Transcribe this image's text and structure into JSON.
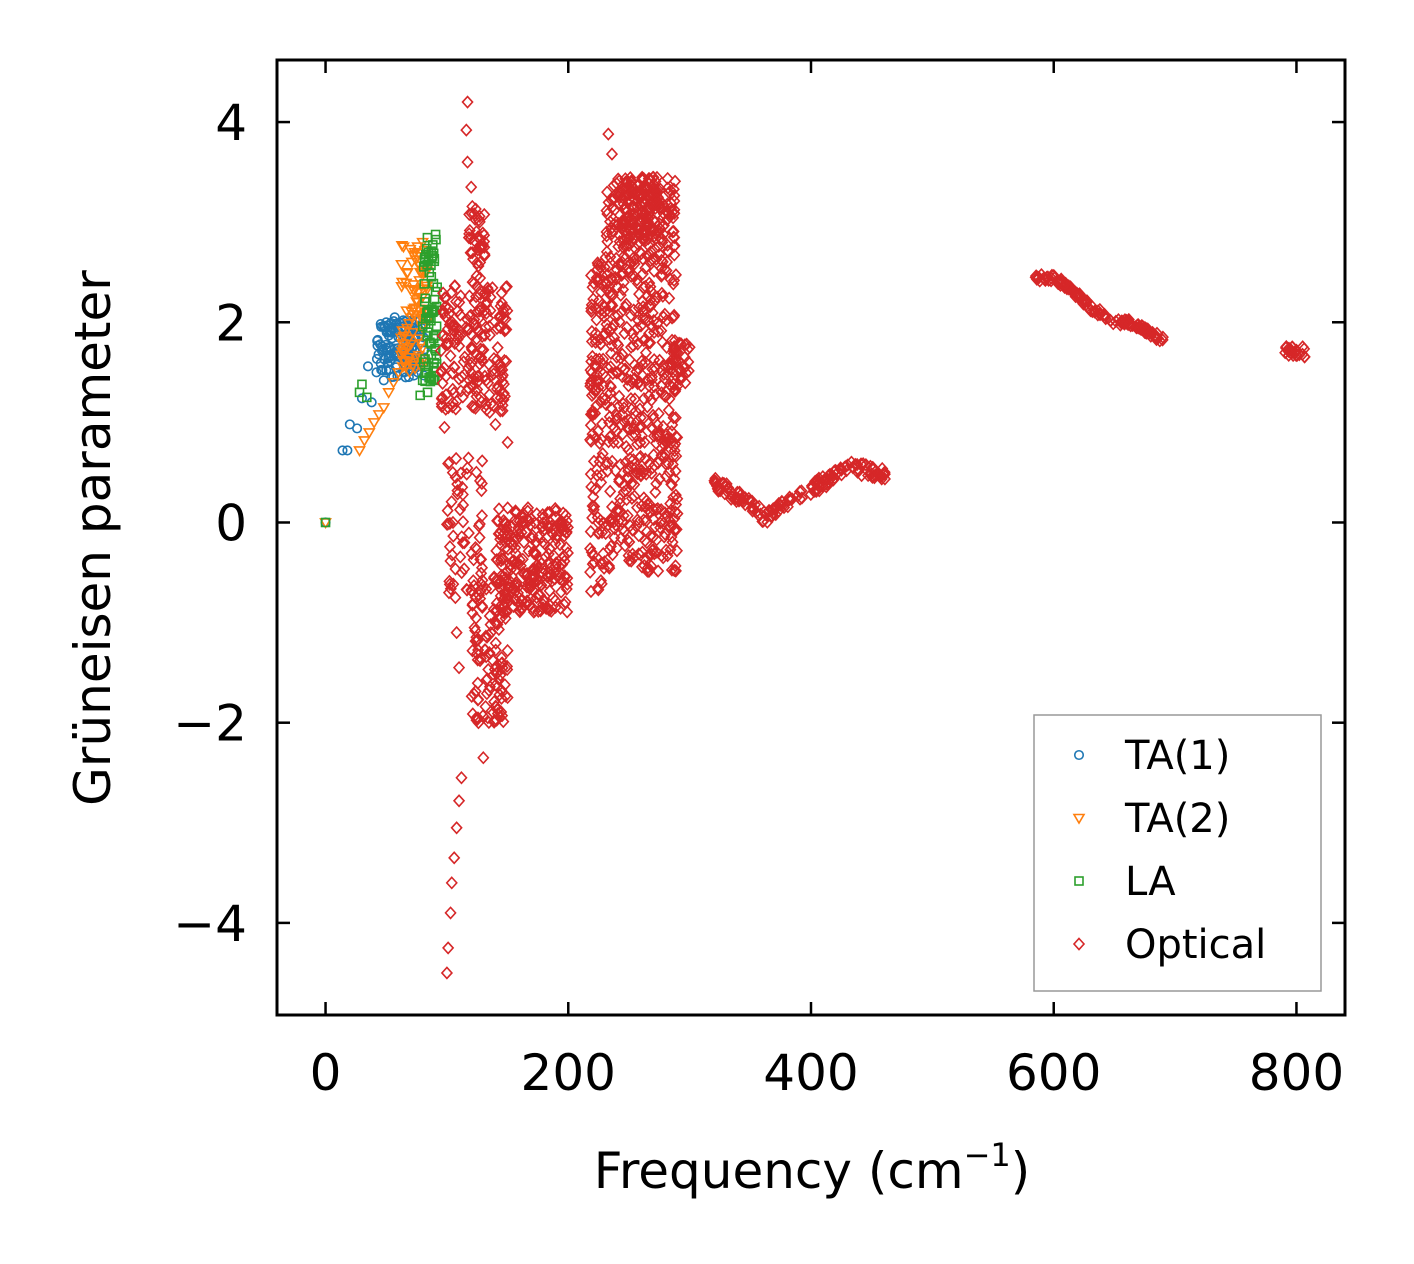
{
  "chart_data": {
    "type": "scatter",
    "title": "",
    "xlabel": "Frequency (cm",
    "xlabel_sup": "−1",
    "xlabel_close": ")",
    "ylabel": "Grüneisen parameter",
    "xlim": [
      -40,
      840
    ],
    "ylim": [
      -4.92,
      4.62
    ],
    "xticks": [
      0,
      200,
      400,
      600,
      800
    ],
    "xtick_labels": [
      "0",
      "200",
      "400",
      "600",
      "800"
    ],
    "yticks": [
      -4,
      -2,
      0,
      2,
      4
    ],
    "ytick_labels": [
      "−4",
      "−2",
      "0",
      "2",
      "4"
    ],
    "legend_position": "lower-right",
    "series": [
      {
        "name": "TA(1)",
        "marker": "circle",
        "color": "#1f77b4",
        "points": [
          [
            0,
            0
          ],
          [
            14,
            0.72
          ],
          [
            18,
            0.72
          ],
          [
            20,
            0.98
          ],
          [
            26,
            0.94
          ],
          [
            30,
            1.24
          ],
          [
            35,
            1.56
          ],
          [
            38,
            1.2
          ],
          [
            42,
            1.5
          ],
          [
            45,
            1.78
          ],
          [
            48,
            1.42
          ],
          [
            50,
            2.0
          ],
          [
            52,
            1.65
          ],
          [
            55,
            1.95
          ],
          [
            57,
            2.05
          ],
          [
            58,
            1.55
          ],
          [
            60,
            1.85
          ],
          [
            62,
            1.7
          ],
          [
            64,
            2.02
          ],
          [
            66,
            1.45
          ],
          [
            68,
            1.9
          ],
          [
            70,
            1.6
          ],
          [
            72,
            1.75
          ],
          [
            74,
            1.95
          ],
          [
            76,
            1.5
          ],
          [
            78,
            2.02
          ]
        ],
        "clusters": [
          {
            "x": [
              42,
              82
            ],
            "y": [
              1.45,
              2.02
            ],
            "n": 130
          }
        ]
      },
      {
        "name": "TA(2)",
        "marker": "triangle-down",
        "color": "#ff7f0e",
        "points": [
          [
            0,
            0
          ],
          [
            28,
            0.72
          ],
          [
            32,
            0.82
          ],
          [
            36,
            0.9
          ],
          [
            40,
            1.0
          ],
          [
            44,
            1.08
          ],
          [
            48,
            1.15
          ],
          [
            52,
            1.3
          ],
          [
            56,
            1.4
          ],
          [
            60,
            1.5
          ],
          [
            64,
            1.62
          ],
          [
            68,
            1.75
          ],
          [
            72,
            1.9
          ],
          [
            76,
            2.2
          ],
          [
            78,
            2.5
          ],
          [
            80,
            2.8
          ],
          [
            82,
            2.72
          ]
        ],
        "clusters": [
          {
            "x": [
              62,
              84
            ],
            "y": [
              1.5,
              2.78
            ],
            "n": 80
          }
        ]
      },
      {
        "name": "LA",
        "marker": "square",
        "color": "#2ca02c",
        "points": [
          [
            0,
            0
          ],
          [
            28,
            1.3
          ],
          [
            30,
            1.38
          ],
          [
            34,
            1.25
          ],
          [
            78,
            1.27
          ],
          [
            80,
            1.42
          ],
          [
            82,
            1.5
          ],
          [
            84,
            1.3
          ],
          [
            86,
            1.8
          ],
          [
            88,
            2.1
          ],
          [
            90,
            1.42
          ],
          [
            92,
            2.35
          ]
        ],
        "clusters": [
          {
            "x": [
              80,
              92
            ],
            "y": [
              1.4,
              2.88
            ],
            "n": 70
          }
        ]
      },
      {
        "name": "Optical",
        "marker": "diamond",
        "color": "#d62728",
        "points": [
          [
            117,
            4.2
          ],
          [
            116,
            3.92
          ],
          [
            117,
            3.6
          ],
          [
            120,
            3.35
          ],
          [
            100,
            -4.5
          ],
          [
            101,
            -4.25
          ],
          [
            103,
            -3.9
          ],
          [
            104,
            -3.6
          ],
          [
            106,
            -3.35
          ],
          [
            108,
            -3.05
          ],
          [
            110,
            -2.78
          ],
          [
            112,
            -2.55
          ],
          [
            98,
            0.95
          ],
          [
            102,
            0.6
          ],
          [
            105,
            0.0
          ],
          [
            107,
            -0.75
          ],
          [
            108,
            -1.1
          ],
          [
            110,
            -1.45
          ],
          [
            126,
            -2.0
          ],
          [
            130,
            -2.35
          ],
          [
            140,
            -1.0
          ],
          [
            150,
            -1.28
          ],
          [
            160,
            -0.82
          ],
          [
            175,
            -0.58
          ],
          [
            195,
            -0.42
          ],
          [
            233,
            3.88
          ],
          [
            236,
            3.68
          ],
          [
            232,
            3.3
          ],
          [
            230,
            2.55
          ],
          [
            220,
            2.35
          ],
          [
            300,
            1.75
          ],
          [
            296,
            1.65
          ],
          [
            128,
            1.25
          ],
          [
            140,
            0.98
          ],
          [
            150,
            0.8
          ],
          [
            104,
            2.3
          ],
          [
            106,
            1.96
          ],
          [
            800,
            1.72
          ],
          [
            795,
            1.7
          ],
          [
            805,
            1.68
          ]
        ],
        "clusters": [
          {
            "x": [
              95,
              150
            ],
            "y": [
              1.1,
              2.4
            ],
            "n": 200
          },
          {
            "x": [
              118,
              132
            ],
            "y": [
              2.4,
              3.2
            ],
            "n": 40
          },
          {
            "x": [
              100,
              130
            ],
            "y": [
              -0.8,
              0.7
            ],
            "n": 60
          },
          {
            "x": [
              120,
              150
            ],
            "y": [
              -2.0,
              -0.5
            ],
            "n": 120
          },
          {
            "x": [
              140,
              200
            ],
            "y": [
              -0.9,
              0.15
            ],
            "n": 260
          },
          {
            "x": [
              218,
              230
            ],
            "y": [
              -0.7,
              2.6
            ],
            "n": 120
          },
          {
            "x": [
              230,
              290
            ],
            "y": [
              -0.5,
              3.45
            ],
            "n": 620
          },
          {
            "x": [
              244,
              276
            ],
            "y": [
              2.8,
              3.45
            ],
            "n": 120
          },
          {
            "x": [
              285,
              300
            ],
            "y": [
              1.3,
              1.8
            ],
            "n": 30
          },
          {
            "x": [
              790,
              808
            ],
            "y": [
              1.65,
              1.76
            ],
            "n": 20
          }
        ],
        "curves": [
          {
            "x": [
              320,
              345,
              362,
              385,
              410,
              430,
              448,
              462
            ],
            "y": [
              0.4,
              0.22,
              0.05,
              0.25,
              0.4,
              0.55,
              0.52,
              0.47
            ],
            "spread": 0.13,
            "n": 170
          },
          {
            "x": [
              585,
              600,
              612,
              630,
              648,
              668,
              690
            ],
            "y": [
              2.45,
              2.44,
              2.36,
              2.15,
              2.02,
              1.98,
              1.82
            ],
            "spread": 0.07,
            "n": 140
          }
        ]
      }
    ]
  }
}
